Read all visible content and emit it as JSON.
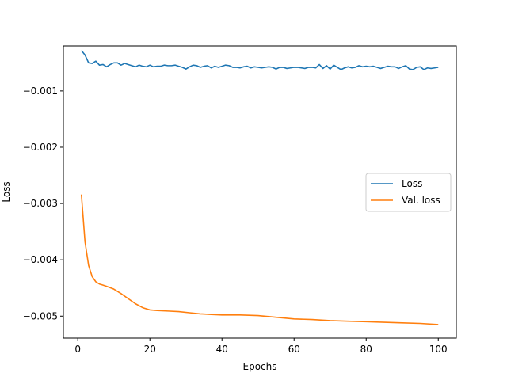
{
  "chart_data": {
    "type": "line",
    "xlabel": "Epochs",
    "ylabel": "Loss",
    "xlim": [
      -4,
      105
    ],
    "ylim": [
      -0.00539,
      -0.0002
    ],
    "xticks": [
      0,
      20,
      40,
      60,
      80,
      100
    ],
    "xtick_labels": [
      "0",
      "20",
      "40",
      "60",
      "80",
      "100"
    ],
    "yticks": [
      -0.001,
      -0.002,
      -0.003,
      -0.004,
      -0.005
    ],
    "ytick_labels": [
      "−0.001",
      "−0.002",
      "−0.003",
      "−0.004",
      "−0.005"
    ],
    "grid": false,
    "legend_position": "center-right",
    "series": [
      {
        "name": "Loss",
        "color": "#1f77b4",
        "x": [
          1,
          2,
          3,
          4,
          5,
          6,
          7,
          8,
          9,
          10,
          11,
          12,
          13,
          14,
          15,
          16,
          17,
          18,
          19,
          20,
          21,
          22,
          23,
          24,
          25,
          26,
          27,
          28,
          29,
          30,
          31,
          32,
          33,
          34,
          35,
          36,
          37,
          38,
          39,
          40,
          41,
          42,
          43,
          44,
          45,
          46,
          47,
          48,
          49,
          50,
          51,
          52,
          53,
          54,
          55,
          56,
          57,
          58,
          59,
          60,
          61,
          62,
          63,
          64,
          65,
          66,
          67,
          68,
          69,
          70,
          71,
          72,
          73,
          74,
          75,
          76,
          77,
          78,
          79,
          80,
          81,
          82,
          83,
          84,
          85,
          86,
          87,
          88,
          89,
          90,
          91,
          92,
          93,
          94,
          95,
          96,
          97,
          98,
          99,
          100
        ],
        "y": [
          -0.00028,
          -0.00036,
          -0.0005,
          -0.00051,
          -0.00047,
          -0.00054,
          -0.00053,
          -0.00057,
          -0.00053,
          -0.0005,
          -0.0005,
          -0.00054,
          -0.00051,
          -0.00053,
          -0.00055,
          -0.00057,
          -0.00054,
          -0.00056,
          -0.00057,
          -0.00054,
          -0.00057,
          -0.00056,
          -0.00056,
          -0.00054,
          -0.00055,
          -0.00055,
          -0.00054,
          -0.00056,
          -0.00058,
          -0.00061,
          -0.00057,
          -0.00054,
          -0.00055,
          -0.00058,
          -0.00056,
          -0.00055,
          -0.00059,
          -0.00056,
          -0.00058,
          -0.00056,
          -0.00054,
          -0.00055,
          -0.00058,
          -0.00058,
          -0.00059,
          -0.00057,
          -0.00056,
          -0.00059,
          -0.00057,
          -0.00058,
          -0.00059,
          -0.00058,
          -0.00057,
          -0.00058,
          -0.00061,
          -0.00058,
          -0.00058,
          -0.0006,
          -0.00059,
          -0.00058,
          -0.00058,
          -0.00059,
          -0.0006,
          -0.00058,
          -0.00058,
          -0.00059,
          -0.00053,
          -0.0006,
          -0.00055,
          -0.00061,
          -0.00054,
          -0.00058,
          -0.00062,
          -0.00059,
          -0.00057,
          -0.00059,
          -0.00058,
          -0.00055,
          -0.00057,
          -0.00056,
          -0.00057,
          -0.00056,
          -0.00058,
          -0.0006,
          -0.00058,
          -0.00056,
          -0.00057,
          -0.00057,
          -0.0006,
          -0.00057,
          -0.00055,
          -0.00061,
          -0.00062,
          -0.00058,
          -0.00057,
          -0.00062,
          -0.00059,
          -0.0006,
          -0.00059,
          -0.00058
        ]
      },
      {
        "name": "Val. loss",
        "color": "#ff7f0e",
        "x": [
          1,
          2,
          3,
          4,
          5,
          6,
          7,
          8,
          10,
          12,
          14,
          16,
          18,
          20,
          22,
          25,
          28,
          31,
          34,
          37,
          40,
          45,
          50,
          55,
          60,
          65,
          70,
          75,
          80,
          85,
          90,
          95,
          100
        ],
        "y": [
          -0.00284,
          -0.00368,
          -0.0041,
          -0.0043,
          -0.00439,
          -0.00443,
          -0.00445,
          -0.00447,
          -0.00452,
          -0.0046,
          -0.00469,
          -0.00478,
          -0.00485,
          -0.00489,
          -0.0049,
          -0.00491,
          -0.00492,
          -0.00494,
          -0.00496,
          -0.00497,
          -0.00498,
          -0.00498,
          -0.00499,
          -0.00502,
          -0.00505,
          -0.00506,
          -0.00508,
          -0.00509,
          -0.0051,
          -0.00511,
          -0.00512,
          -0.00513,
          -0.00515
        ]
      }
    ]
  }
}
